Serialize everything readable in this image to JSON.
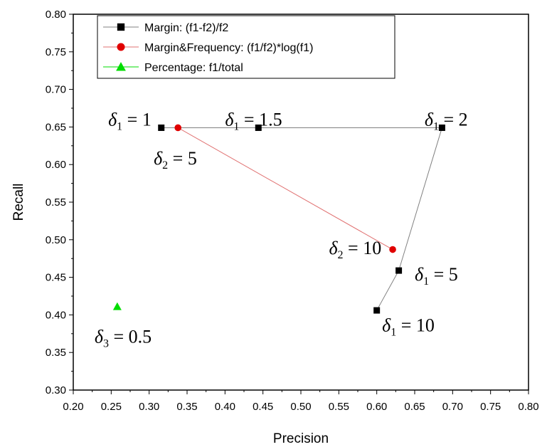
{
  "chart_data": {
    "type": "scatter",
    "xlabel": "Precision",
    "ylabel": "Recall",
    "xlim": [
      0.2,
      0.8
    ],
    "ylim": [
      0.3,
      0.8
    ],
    "x_ticks": [
      "0.20",
      "0.25",
      "0.30",
      "0.35",
      "0.40",
      "0.45",
      "0.50",
      "0.55",
      "0.60",
      "0.65",
      "0.70",
      "0.75",
      "0.80"
    ],
    "y_ticks": [
      "0.30",
      "0.35",
      "0.40",
      "0.45",
      "0.50",
      "0.55",
      "0.60",
      "0.65",
      "0.70",
      "0.75",
      "0.80"
    ],
    "grid": false,
    "legend_position": "top-left",
    "series": [
      {
        "name": "Margin: (f1-f2)/f2",
        "marker": "square",
        "color": "#000000",
        "line_color": "#808080",
        "points": [
          {
            "x": 0.316,
            "y": 0.649
          },
          {
            "x": 0.444,
            "y": 0.649
          },
          {
            "x": 0.686,
            "y": 0.649
          },
          {
            "x": 0.629,
            "y": 0.459
          },
          {
            "x": 0.6,
            "y": 0.406
          }
        ]
      },
      {
        "name": "Margin&Frequency: (f1/f2)*log(f1)",
        "marker": "circle",
        "color": "#e00000",
        "line_color": "#e07070",
        "points": [
          {
            "x": 0.338,
            "y": 0.649
          },
          {
            "x": 0.621,
            "y": 0.487
          }
        ]
      },
      {
        "name": "Percentage: f1/total",
        "marker": "triangle",
        "color": "#00dd00",
        "line_color": "#00dd00",
        "points": [
          {
            "x": 0.258,
            "y": 0.411
          }
        ]
      }
    ],
    "annotations": [
      {
        "sym": "δ",
        "sub": "1",
        "rest": " = 1",
        "x": 0.246,
        "y": 0.652
      },
      {
        "sym": "δ",
        "sub": "1",
        "rest": " = 1.5",
        "x": 0.4,
        "y": 0.652
      },
      {
        "sym": "δ",
        "sub": "1",
        "rest": " = 2",
        "x": 0.663,
        "y": 0.652
      },
      {
        "sym": "δ",
        "sub": "2",
        "rest": " = 5",
        "x": 0.306,
        "y": 0.6
      },
      {
        "sym": "δ",
        "sub": "2",
        "rest": " = 10",
        "x": 0.537,
        "y": 0.481
      },
      {
        "sym": "δ",
        "sub": "1",
        "rest": " = 5",
        "x": 0.65,
        "y": 0.446
      },
      {
        "sym": "δ",
        "sub": "1",
        "rest": " = 10",
        "x": 0.607,
        "y": 0.378
      },
      {
        "sym": "δ",
        "sub": "3",
        "rest": " = 0.5",
        "x": 0.228,
        "y": 0.363
      }
    ]
  }
}
